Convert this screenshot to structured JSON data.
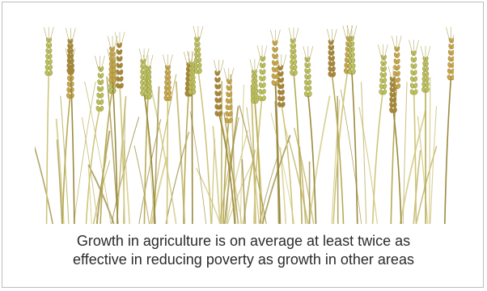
{
  "figure": {
    "illustration": {
      "subject": "wheat-stalks",
      "colors": {
        "stalk_light": "#cfc67a",
        "stalk_mid": "#b8ab55",
        "stalk_dark": "#9a8a3c",
        "ear_green": "#b9c25a",
        "ear_gold": "#c9a64a",
        "ear_brown": "#a8863a"
      }
    },
    "caption": {
      "line1": "Growth in agriculture is on average at least twice as",
      "line2": "effective in reducing poverty as growth in other areas"
    }
  }
}
